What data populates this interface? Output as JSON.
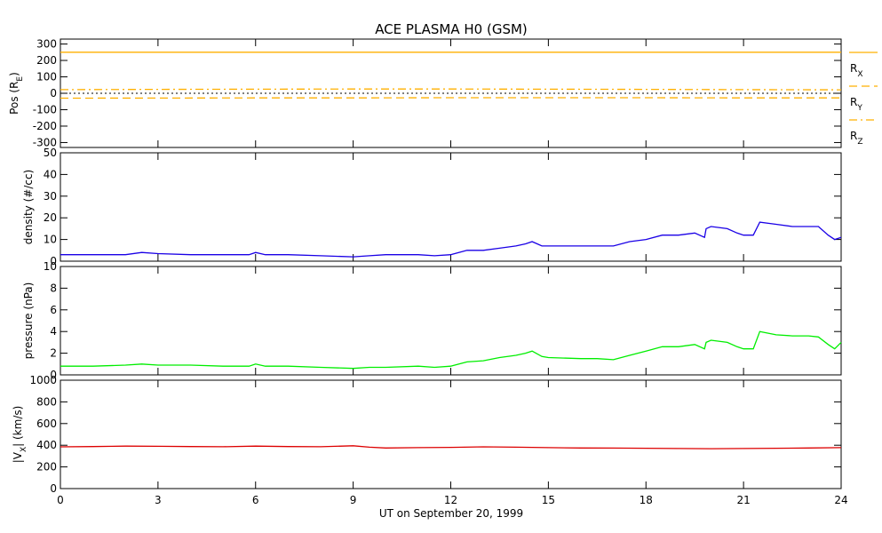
{
  "title": "ACE PLASMA H0 (GSM)",
  "x_axis": {
    "label": "UT on September 20, 1999",
    "range": [
      0,
      24
    ],
    "ticks": [
      0,
      3,
      6,
      9,
      12,
      15,
      18,
      21,
      24
    ],
    "tick_labels": [
      "0",
      "3",
      "6",
      "9",
      "12",
      "15",
      "18",
      "21",
      "24"
    ]
  },
  "chart_data": [
    {
      "type": "line",
      "panel": "position",
      "ylabel": "Pos (R",
      "ylabel_sub": "E",
      "ylabel_close": ")",
      "ylim": [
        -330,
        330
      ],
      "yticks": [
        300,
        200,
        100,
        0,
        -100,
        -200,
        -300
      ],
      "ytick_labels": [
        "300",
        "200",
        "100",
        "0",
        "-100",
        "-200",
        "-300"
      ],
      "zero_line": true,
      "x": [
        0,
        3,
        6,
        9,
        12,
        15,
        18,
        21,
        24
      ],
      "series": [
        {
          "name": "R",
          "sub": "X",
          "dash": "solid",
          "color": "#ffb000",
          "values": [
            250,
            250,
            250,
            250,
            250,
            250,
            250,
            250,
            250
          ]
        },
        {
          "name": "R",
          "sub": "Y",
          "dash": "dashed",
          "color": "#ffb000",
          "values": [
            -30,
            -29,
            -28,
            -28,
            -27,
            -27,
            -27,
            -28,
            -28
          ]
        },
        {
          "name": "R",
          "sub": "Z",
          "dash": "dashdot",
          "color": "#ffb000",
          "values": [
            22,
            24,
            25,
            26,
            26,
            25,
            24,
            22,
            21
          ]
        }
      ]
    },
    {
      "type": "line",
      "panel": "density",
      "ylabel": "density (#/cc)",
      "ylim": [
        0,
        50
      ],
      "yticks": [
        0,
        10,
        20,
        30,
        40,
        50
      ],
      "ytick_labels": [
        "0",
        "10",
        "20",
        "30",
        "40",
        "50"
      ],
      "x": [
        0,
        1,
        2,
        2.5,
        3,
        4,
        5,
        5.8,
        6,
        6.3,
        7,
        8,
        9,
        9.5,
        10,
        11,
        11.5,
        12,
        12.5,
        13,
        13.5,
        14,
        14.3,
        14.5,
        14.8,
        15,
        16,
        16.5,
        17,
        17.5,
        18,
        18.5,
        19,
        19.5,
        19.8,
        19.85,
        20,
        20.5,
        20.8,
        21,
        21.3,
        21.5,
        22,
        22.5,
        23,
        23.3,
        23.6,
        23.8,
        24
      ],
      "series": [
        {
          "name": "",
          "color": "#1a00e6",
          "values": [
            3,
            3,
            3,
            4,
            3.5,
            3,
            3,
            3,
            4,
            3,
            3,
            2.5,
            2,
            2.5,
            3,
            3,
            2.5,
            3,
            5,
            5,
            6,
            7,
            8,
            9,
            7,
            7,
            7,
            7,
            7,
            9,
            10,
            12,
            12,
            13,
            11,
            15,
            16,
            15,
            13,
            12,
            12,
            18,
            17,
            16,
            16,
            16,
            12,
            10,
            11
          ]
        }
      ]
    },
    {
      "type": "line",
      "panel": "pressure",
      "ylabel": "pressure (nPa)",
      "ylim": [
        0,
        10
      ],
      "yticks": [
        0,
        2,
        4,
        6,
        8,
        10
      ],
      "ytick_labels": [
        "0",
        "2",
        "4",
        "6",
        "8",
        "10"
      ],
      "x": [
        0,
        1,
        2,
        2.5,
        3,
        4,
        5,
        5.8,
        6,
        6.3,
        7,
        8,
        9,
        9.5,
        10,
        11,
        11.5,
        12,
        12.5,
        13,
        13.5,
        14,
        14.3,
        14.5,
        14.8,
        15,
        16,
        16.5,
        17,
        17.5,
        18,
        18.5,
        19,
        19.5,
        19.8,
        19.85,
        20,
        20.5,
        20.8,
        21,
        21.3,
        21.5,
        22,
        22.5,
        23,
        23.3,
        23.6,
        23.8,
        24
      ],
      "series": [
        {
          "name": "",
          "color": "#00ee00",
          "values": [
            0.8,
            0.8,
            0.9,
            1.0,
            0.9,
            0.9,
            0.8,
            0.8,
            1.0,
            0.8,
            0.8,
            0.7,
            0.6,
            0.7,
            0.7,
            0.8,
            0.7,
            0.8,
            1.2,
            1.3,
            1.6,
            1.8,
            2.0,
            2.2,
            1.7,
            1.6,
            1.5,
            1.5,
            1.4,
            1.8,
            2.2,
            2.6,
            2.6,
            2.8,
            2.4,
            3.0,
            3.2,
            3.0,
            2.6,
            2.4,
            2.4,
            4.0,
            3.7,
            3.6,
            3.6,
            3.5,
            2.8,
            2.4,
            3.0
          ]
        }
      ]
    },
    {
      "type": "line",
      "panel": "velocity",
      "ylabel": "|V",
      "ylabel_sub": "X",
      "ylabel_close": "| (km/s)",
      "ylim": [
        0,
        1000
      ],
      "yticks": [
        0,
        200,
        400,
        600,
        800,
        1000
      ],
      "ytick_labels": [
        "0",
        "200",
        "400",
        "600",
        "800",
        "1000"
      ],
      "x": [
        0,
        1,
        2,
        3,
        4,
        5,
        6,
        7,
        8,
        9,
        9.5,
        10,
        11,
        12,
        13,
        14,
        15,
        16,
        17,
        18,
        19,
        20,
        21,
        22,
        23,
        24
      ],
      "series": [
        {
          "name": "",
          "color": "#dd0000",
          "values": [
            385,
            388,
            392,
            390,
            388,
            386,
            392,
            388,
            386,
            395,
            382,
            375,
            378,
            380,
            385,
            382,
            378,
            375,
            374,
            372,
            370,
            368,
            370,
            372,
            375,
            378
          ]
        }
      ]
    }
  ]
}
